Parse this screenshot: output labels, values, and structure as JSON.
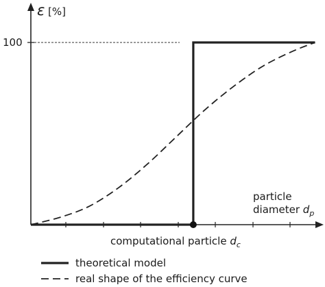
{
  "chart_data": {
    "type": "line",
    "ylabel_symbol": "ε",
    "ylabel_unit": "[%]",
    "y_tick_label": "100",
    "y_tick_value": 100,
    "xlabel_line1": "particle",
    "xlabel_line2": "diameter",
    "xlabel_var": "d",
    "xlabel_sub": "p",
    "marker_label": "computational particle",
    "marker_var": "d",
    "marker_sub": "c",
    "xlim": [
      0,
      1
    ],
    "ylim": [
      0,
      100
    ],
    "marker_x": 0.56,
    "curve_x_end": 0.98,
    "series": [
      {
        "name": "theoretical model",
        "style": "solid",
        "points": [
          [
            0,
            0
          ],
          [
            0.56,
            0
          ],
          [
            0.56,
            100
          ],
          [
            0.98,
            100
          ]
        ]
      },
      {
        "name": "real shape of the efficiency curve",
        "style": "dashed",
        "points": [
          [
            0,
            0
          ],
          [
            0.1,
            4
          ],
          [
            0.2,
            10
          ],
          [
            0.3,
            20
          ],
          [
            0.4,
            33
          ],
          [
            0.5,
            48
          ],
          [
            0.6,
            63
          ],
          [
            0.7,
            76
          ],
          [
            0.8,
            87
          ],
          [
            0.9,
            95
          ],
          [
            0.98,
            100
          ]
        ]
      }
    ],
    "legend": [
      {
        "label": "theoretical model",
        "style": "solid"
      },
      {
        "label": "real shape of the efficiency curve",
        "style": "dashed"
      }
    ]
  }
}
